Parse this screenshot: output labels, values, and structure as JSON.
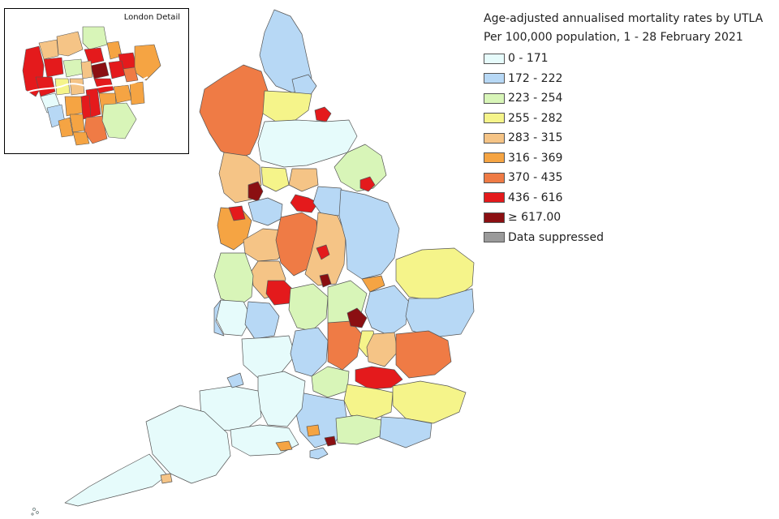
{
  "inset": {
    "title": "London Detail"
  },
  "legend": {
    "title": "Age-adjusted annualised mortality rates by UTLA",
    "subtitle": "Per 100,000 population, 1 - 28 February 2021",
    "items": [
      {
        "label": "0 - 171",
        "color": "#e6fbfb"
      },
      {
        "label": "172 - 222",
        "color": "#b7d8f5"
      },
      {
        "label": "223 - 254",
        "color": "#d8f5b8"
      },
      {
        "label": "255 - 282",
        "color": "#f5f48a"
      },
      {
        "label": "283 - 315",
        "color": "#f5c486"
      },
      {
        "label": "316 - 369",
        "color": "#f5a443"
      },
      {
        "label": "370 - 435",
        "color": "#ef7b45"
      },
      {
        "label": "436 - 616",
        "color": "#e41a1c"
      },
      {
        "label": "≥ 617.00",
        "color": "#8b0f12"
      },
      {
        "label": "Data suppressed",
        "color": "#9a9a9a"
      }
    ]
  },
  "regions": [
    {
      "id": "northumberland",
      "band": 1
    },
    {
      "id": "cumbria",
      "band": 6
    },
    {
      "id": "tyneside",
      "band": 1
    },
    {
      "id": "durham",
      "band": 3
    },
    {
      "id": "teesside",
      "band": 7
    },
    {
      "id": "north-yorkshire",
      "band": 0
    },
    {
      "id": "east-riding",
      "band": 2
    },
    {
      "id": "hull",
      "band": 7
    },
    {
      "id": "lancashire",
      "band": 4
    },
    {
      "id": "blackburn",
      "band": 8
    },
    {
      "id": "leeds",
      "band": 4
    },
    {
      "id": "bradford",
      "band": 3
    },
    {
      "id": "wakefield",
      "band": 7
    },
    {
      "id": "merseyside",
      "band": 5
    },
    {
      "id": "liverpool",
      "band": 7
    },
    {
      "id": "manchester",
      "band": 1
    },
    {
      "id": "cheshire",
      "band": 4
    },
    {
      "id": "south-yorkshire",
      "band": 1
    },
    {
      "id": "derbyshire",
      "band": 6
    },
    {
      "id": "nottinghamshire",
      "band": 4
    },
    {
      "id": "nottingham",
      "band": 7
    },
    {
      "id": "lincolnshire",
      "band": 1
    },
    {
      "id": "leicester",
      "band": 8
    },
    {
      "id": "staffordshire",
      "band": 4
    },
    {
      "id": "shropshire",
      "band": 2
    },
    {
      "id": "birmingham",
      "band": 7
    },
    {
      "id": "warwickshire",
      "band": 2
    },
    {
      "id": "northamptonshire",
      "band": 2
    },
    {
      "id": "peterborough",
      "band": 5
    },
    {
      "id": "cambridgeshire",
      "band": 1
    },
    {
      "id": "norfolk",
      "band": 3
    },
    {
      "id": "suffolk",
      "band": 1
    },
    {
      "id": "herefordshire",
      "band": 0
    },
    {
      "id": "worcestershire",
      "band": 1
    },
    {
      "id": "gloucestershire",
      "band": 0
    },
    {
      "id": "oxfordshire",
      "band": 1
    },
    {
      "id": "buckinghamshire",
      "band": 6
    },
    {
      "id": "milton-keynes",
      "band": 8
    },
    {
      "id": "bedfordshire",
      "band": 3
    },
    {
      "id": "hertfordshire",
      "band": 4
    },
    {
      "id": "essex",
      "band": 6
    },
    {
      "id": "london",
      "band": 7
    },
    {
      "id": "wales-border",
      "band": 1
    },
    {
      "id": "berkshire",
      "band": 2
    },
    {
      "id": "surrey",
      "band": 3
    },
    {
      "id": "kent",
      "band": 3
    },
    {
      "id": "hampshire",
      "band": 1
    },
    {
      "id": "west-sussex",
      "band": 2
    },
    {
      "id": "east-sussex",
      "band": 1
    },
    {
      "id": "wiltshire",
      "band": 0
    },
    {
      "id": "somerset",
      "band": 0
    },
    {
      "id": "dorset",
      "band": 0
    },
    {
      "id": "devon",
      "band": 0
    },
    {
      "id": "cornwall",
      "band": 0
    },
    {
      "id": "isle-of-wight",
      "band": 1
    },
    {
      "id": "southampton",
      "band": 5
    },
    {
      "id": "portsmouth",
      "band": 8
    },
    {
      "id": "plymouth",
      "band": 4
    },
    {
      "id": "bristol",
      "band": 1
    },
    {
      "id": "swindon",
      "band": 5
    }
  ],
  "london_boroughs": [
    {
      "id": "hillingdon",
      "band": 7
    },
    {
      "id": "harrow",
      "band": 4
    },
    {
      "id": "barnet",
      "band": 4
    },
    {
      "id": "enfield",
      "band": 2
    },
    {
      "id": "waltham-forest",
      "band": 5
    },
    {
      "id": "redbridge",
      "band": 7
    },
    {
      "id": "havering",
      "band": 5
    },
    {
      "id": "brent",
      "band": 7
    },
    {
      "id": "haringey",
      "band": 7
    },
    {
      "id": "hackney",
      "band": 8
    },
    {
      "id": "newham",
      "band": 7
    },
    {
      "id": "barking",
      "band": 6
    },
    {
      "id": "ealing",
      "band": 7
    },
    {
      "id": "camden",
      "band": 2
    },
    {
      "id": "islington",
      "band": 4
    },
    {
      "id": "tower-hamlets",
      "band": 7
    },
    {
      "id": "hounslow",
      "band": 0
    },
    {
      "id": "hammersmith",
      "band": 3
    },
    {
      "id": "westminster",
      "band": 4
    },
    {
      "id": "southwark",
      "band": 7
    },
    {
      "id": "greenwich",
      "band": 5
    },
    {
      "id": "bexley",
      "band": 5
    },
    {
      "id": "richmond",
      "band": 1
    },
    {
      "id": "wandsworth",
      "band": 5
    },
    {
      "id": "lambeth",
      "band": 7
    },
    {
      "id": "lewisham",
      "band": 5
    },
    {
      "id": "kingston",
      "band": 5
    },
    {
      "id": "merton",
      "band": 5
    },
    {
      "id": "croydon",
      "band": 6
    },
    {
      "id": "sutton",
      "band": 5
    },
    {
      "id": "bromley",
      "band": 2
    }
  ]
}
